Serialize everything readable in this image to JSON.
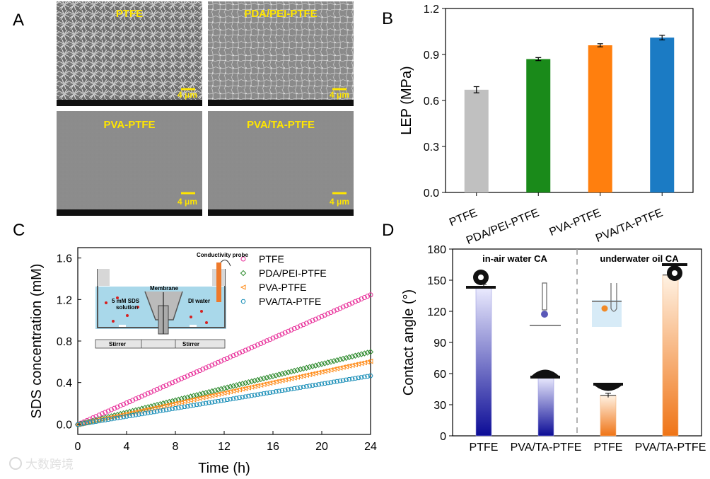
{
  "panels": {
    "a": "A",
    "b": "B",
    "c": "C",
    "d": "D"
  },
  "sem": {
    "images": [
      {
        "label": "PTFE",
        "scale": "4 μm",
        "texture": "fibers"
      },
      {
        "label": "PDA/PEI-PTFE",
        "scale": "4 μm",
        "texture": "network"
      },
      {
        "label": "PVA-PTFE",
        "scale": "4 μm",
        "texture": "smooth"
      },
      {
        "label": "PVA/TA-PTFE",
        "scale": "4 μm",
        "texture": "smooth"
      }
    ]
  },
  "chart_data": [
    {
      "id": "B",
      "type": "bar",
      "categories": [
        "PTFE",
        "PDA/PEI-PTFE",
        "PVA-PTFE",
        "PVA/TA-PTFE"
      ],
      "values": [
        0.67,
        0.87,
        0.96,
        1.01
      ],
      "errors": [
        0.02,
        0.01,
        0.01,
        0.015
      ],
      "colors": [
        "#c0c0c0",
        "#1a8a1a",
        "#ff7f0e",
        "#1b7bc4"
      ],
      "ylabel": "LEP (MPa)",
      "ylim": [
        0,
        1.2
      ],
      "yticks": [
        "0.0",
        "0.3",
        "0.6",
        "0.9",
        "1.2"
      ]
    },
    {
      "id": "C",
      "type": "scatter",
      "xlabel": "Time (h)",
      "ylabel": "SDS concentration (mM)",
      "xlim": [
        0,
        24
      ],
      "ylim": [
        -0.1,
        1.7
      ],
      "xticks": [
        "0",
        "4",
        "8",
        "12",
        "16",
        "20",
        "24"
      ],
      "yticks": [
        "0.0",
        "0.4",
        "0.8",
        "1.2",
        "1.6"
      ],
      "series": [
        {
          "name": "PTFE",
          "color": "#e8309a",
          "marker": "circle",
          "end": 1.25
        },
        {
          "name": "PDA/PEI-PTFE",
          "color": "#2e8b2e",
          "marker": "diamond",
          "end": 0.7
        },
        {
          "name": "PVA-PTFE",
          "color": "#ff8c1a",
          "marker": "triangle-left",
          "end": 0.61
        },
        {
          "name": "PVA/TA-PTFE",
          "color": "#1b8fb8",
          "marker": "hexagon",
          "end": 0.47
        }
      ],
      "inset": {
        "conductivity_probe": "Conductivity probe",
        "membrane": "Membrane",
        "sds_solution_line1": "5 mM SDS",
        "sds_solution_line2": "solution",
        "di_water": "DI water",
        "stirrer_left": "Stirrer",
        "stirrer_right": "Stirrer"
      }
    },
    {
      "id": "D",
      "type": "bar",
      "categories": [
        "PTFE",
        "PVA/TA-PTFE",
        "PTFE",
        "PVA/TA-PTFE"
      ],
      "values": [
        144,
        57,
        39,
        155
      ],
      "errors": [
        2,
        1.2,
        2,
        1
      ],
      "groups": [
        {
          "label": "in-air water CA",
          "colors": [
            "#1010a0",
            "#ececff"
          ]
        },
        {
          "label": "underwater oil CA",
          "colors": [
            "#f07a1e",
            "#fff3e6"
          ]
        }
      ],
      "ylabel": "Contact angle (°)",
      "ylim": [
        0,
        180
      ],
      "yticks": [
        "0",
        "30",
        "60",
        "90",
        "120",
        "150",
        "180"
      ]
    }
  ],
  "watermark": "大数跨境"
}
